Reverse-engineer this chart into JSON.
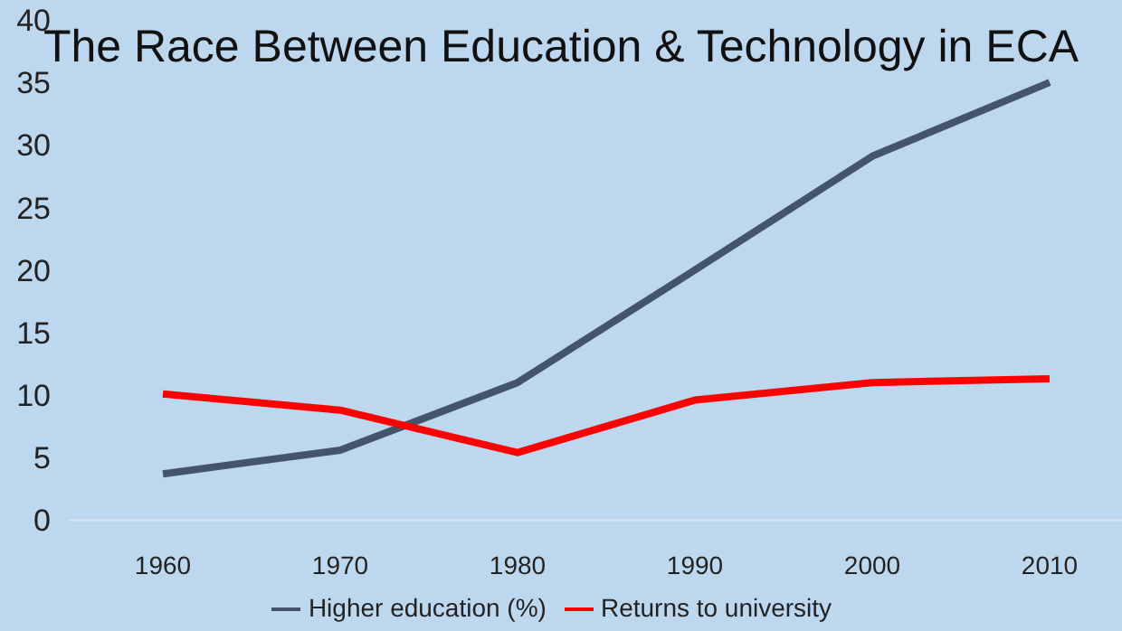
{
  "chart_data": {
    "type": "line",
    "title": "The Race Between Education & Technology in ECA",
    "categories": [
      "1960",
      "1970",
      "1980",
      "1990",
      "2000",
      "2010"
    ],
    "series": [
      {
        "name": "Higher education (%)",
        "color": "#44546a",
        "values": [
          3.7,
          5.6,
          11,
          20,
          29.1,
          35
        ]
      },
      {
        "name": "Returns to university",
        "color": "#ff0000",
        "values": [
          10.1,
          8.8,
          5.4,
          9.6,
          11,
          11.3
        ]
      }
    ],
    "ylim": [
      0,
      40
    ],
    "yticks": [
      0,
      5,
      10,
      15,
      20,
      25,
      30,
      35,
      40
    ],
    "grid": false,
    "legend": "bottom",
    "marker": "none",
    "line_style": "solid"
  }
}
